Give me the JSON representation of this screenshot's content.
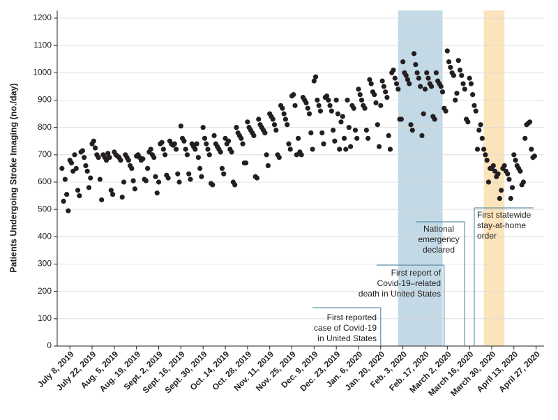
{
  "chart_data": {
    "type": "scatter",
    "ylabel": "Patients Undergoing Stroke Imaging (no./day)",
    "color": "#231f20",
    "grid": true,
    "ylim": [
      0,
      1228
    ],
    "yticks": [
      0,
      100,
      200,
      300,
      400,
      500,
      600,
      700,
      800,
      900,
      1000,
      1100,
      1200
    ],
    "xlim": [
      "2019-06-30",
      "2020-05-02"
    ],
    "xticks": [
      {
        "value": "2019-07-08",
        "label": "July 8, 2019"
      },
      {
        "value": "2019-07-22",
        "label": "July 22, 2019"
      },
      {
        "value": "2019-08-05",
        "label": "Aug. 5, 2019"
      },
      {
        "value": "2019-08-19",
        "label": "Aug. 19, 2019"
      },
      {
        "value": "2019-09-02",
        "label": "Sept. 2, 2019"
      },
      {
        "value": "2019-09-16",
        "label": "Sept. 16, 2019"
      },
      {
        "value": "2019-09-30",
        "label": "Sept. 30, 2019"
      },
      {
        "value": "2019-10-14",
        "label": "Oct. 14, 2019"
      },
      {
        "value": "2019-10-28",
        "label": "Oct. 28, 2019"
      },
      {
        "value": "2019-11-11",
        "label": "Nov. 11, 2019"
      },
      {
        "value": "2019-11-25",
        "label": "Nov. 25, 2019"
      },
      {
        "value": "2019-12-09",
        "label": "Dec. 9, 2019"
      },
      {
        "value": "2019-12-23",
        "label": "Dec. 23, 2019"
      },
      {
        "value": "2020-01-06",
        "label": "Jan. 6, 2020"
      },
      {
        "value": "2020-01-20",
        "label": "Jan. 20, 2020"
      },
      {
        "value": "2020-02-03",
        "label": "Feb. 3, 2020"
      },
      {
        "value": "2020-02-17",
        "label": "Feb. 17, 2020"
      },
      {
        "value": "2020-03-02",
        "label": "March 2, 2020"
      },
      {
        "value": "2020-03-16",
        "label": "March 16, 2020"
      },
      {
        "value": "2020-03-30",
        "label": "March 30, 2020"
      },
      {
        "value": "2020-04-13",
        "label": "April 13, 2020"
      },
      {
        "value": "2020-04-27",
        "label": "April 27, 2020"
      }
    ],
    "shaded_regions": [
      {
        "start": "2020-01-31",
        "end": "2020-02-28",
        "color": "#c3d9e5"
      },
      {
        "start": "2020-03-25",
        "end": "2020-04-07",
        "color": "#fbe4bb"
      }
    ],
    "annotations": [
      {
        "text": [
          "First reported",
          "case of Covid-19",
          "in United States"
        ],
        "date": "2020-01-20"
      },
      {
        "text": [
          "First report of",
          "Covid-19–related",
          "death in United States"
        ],
        "date": "2020-02-29"
      },
      {
        "text": [
          "National",
          "emergency",
          "declared"
        ],
        "date": "2020-03-13"
      },
      {
        "text": [
          "First statewide",
          "stay-at-home",
          "order"
        ],
        "date": "2020-03-19"
      }
    ],
    "x": [
      "2019-07-03",
      "2019-07-04",
      "2019-07-05",
      "2019-07-06",
      "2019-07-07",
      "2019-07-08",
      "2019-07-09",
      "2019-07-10",
      "2019-07-11",
      "2019-07-12",
      "2019-07-13",
      "2019-07-14",
      "2019-07-15",
      "2019-07-16",
      "2019-07-17",
      "2019-07-18",
      "2019-07-19",
      "2019-07-20",
      "2019-07-21",
      "2019-07-22",
      "2019-07-23",
      "2019-07-24",
      "2019-07-25",
      "2019-07-26",
      "2019-07-27",
      "2019-07-28",
      "2019-07-29",
      "2019-07-30",
      "2019-07-31",
      "2019-08-01",
      "2019-08-02",
      "2019-08-03",
      "2019-08-04",
      "2019-08-05",
      "2019-08-06",
      "2019-08-07",
      "2019-08-08",
      "2019-08-09",
      "2019-08-10",
      "2019-08-11",
      "2019-08-12",
      "2019-08-13",
      "2019-08-14",
      "2019-08-15",
      "2019-08-16",
      "2019-08-17",
      "2019-08-18",
      "2019-08-19",
      "2019-08-20",
      "2019-08-21",
      "2019-08-22",
      "2019-08-23",
      "2019-08-24",
      "2019-08-25",
      "2019-08-26",
      "2019-08-27",
      "2019-08-28",
      "2019-08-29",
      "2019-08-30",
      "2019-08-31",
      "2019-09-01",
      "2019-09-02",
      "2019-09-03",
      "2019-09-04",
      "2019-09-05",
      "2019-09-06",
      "2019-09-07",
      "2019-09-08",
      "2019-09-09",
      "2019-09-10",
      "2019-09-11",
      "2019-09-12",
      "2019-09-13",
      "2019-09-14",
      "2019-09-15",
      "2019-09-16",
      "2019-09-17",
      "2019-09-18",
      "2019-09-19",
      "2019-09-20",
      "2019-09-21",
      "2019-09-22",
      "2019-09-23",
      "2019-09-24",
      "2019-09-25",
      "2019-09-26",
      "2019-09-27",
      "2019-09-28",
      "2019-09-29",
      "2019-09-30",
      "2019-10-01",
      "2019-10-02",
      "2019-10-03",
      "2019-10-04",
      "2019-10-05",
      "2019-10-06",
      "2019-10-07",
      "2019-10-08",
      "2019-10-09",
      "2019-10-10",
      "2019-10-11",
      "2019-10-12",
      "2019-10-13",
      "2019-10-14",
      "2019-10-15",
      "2019-10-16",
      "2019-10-17",
      "2019-10-18",
      "2019-10-19",
      "2019-10-20",
      "2019-10-21",
      "2019-10-22",
      "2019-10-23",
      "2019-10-24",
      "2019-10-25",
      "2019-10-26",
      "2019-10-27",
      "2019-10-28",
      "2019-10-29",
      "2019-10-30",
      "2019-10-31",
      "2019-11-01",
      "2019-11-02",
      "2019-11-03",
      "2019-11-04",
      "2019-11-05",
      "2019-11-06",
      "2019-11-07",
      "2019-11-08",
      "2019-11-09",
      "2019-11-10",
      "2019-11-11",
      "2019-11-12",
      "2019-11-13",
      "2019-11-14",
      "2019-11-15",
      "2019-11-16",
      "2019-11-17",
      "2019-11-18",
      "2019-11-19",
      "2019-11-20",
      "2019-11-21",
      "2019-11-22",
      "2019-11-23",
      "2019-11-24",
      "2019-11-25",
      "2019-11-26",
      "2019-11-27",
      "2019-11-28",
      "2019-11-29",
      "2019-11-30",
      "2019-12-01",
      "2019-12-02",
      "2019-12-03",
      "2019-12-04",
      "2019-12-05",
      "2019-12-06",
      "2019-12-07",
      "2019-12-08",
      "2019-12-09",
      "2019-12-10",
      "2019-12-11",
      "2019-12-12",
      "2019-12-13",
      "2019-12-14",
      "2019-12-15",
      "2019-12-16",
      "2019-12-17",
      "2019-12-18",
      "2019-12-19",
      "2019-12-20",
      "2019-12-21",
      "2019-12-22",
      "2019-12-23",
      "2019-12-24",
      "2019-12-25",
      "2019-12-26",
      "2019-12-27",
      "2019-12-28",
      "2019-12-29",
      "2019-12-30",
      "2019-12-31",
      "2020-01-01",
      "2020-01-02",
      "2020-01-03",
      "2020-01-04",
      "2020-01-05",
      "2020-01-06",
      "2020-01-07",
      "2020-01-08",
      "2020-01-09",
      "2020-01-10",
      "2020-01-11",
      "2020-01-12",
      "2020-01-13",
      "2020-01-14",
      "2020-01-15",
      "2020-01-16",
      "2020-01-17",
      "2020-01-18",
      "2020-01-19",
      "2020-01-20",
      "2020-01-21",
      "2020-01-22",
      "2020-01-23",
      "2020-01-24",
      "2020-01-25",
      "2020-01-26",
      "2020-01-27",
      "2020-01-28",
      "2020-01-29",
      "2020-01-30",
      "2020-01-31",
      "2020-02-01",
      "2020-02-02",
      "2020-02-03",
      "2020-02-04",
      "2020-02-05",
      "2020-02-06",
      "2020-02-07",
      "2020-02-08",
      "2020-02-09",
      "2020-02-10",
      "2020-02-11",
      "2020-02-12",
      "2020-02-13",
      "2020-02-14",
      "2020-02-15",
      "2020-02-16",
      "2020-02-17",
      "2020-02-18",
      "2020-02-19",
      "2020-02-20",
      "2020-02-21",
      "2020-02-22",
      "2020-02-23",
      "2020-02-24",
      "2020-02-25",
      "2020-02-26",
      "2020-02-27",
      "2020-02-28",
      "2020-02-29",
      "2020-03-01",
      "2020-03-02",
      "2020-03-03",
      "2020-03-04",
      "2020-03-05",
      "2020-03-06",
      "2020-03-07",
      "2020-03-08",
      "2020-03-09",
      "2020-03-10",
      "2020-03-11",
      "2020-03-12",
      "2020-03-13",
      "2020-03-14",
      "2020-03-15",
      "2020-03-16",
      "2020-03-17",
      "2020-03-18",
      "2020-03-19",
      "2020-03-20",
      "2020-03-21",
      "2020-03-22",
      "2020-03-23",
      "2020-03-24",
      "2020-03-25",
      "2020-03-26",
      "2020-03-27",
      "2020-03-28",
      "2020-03-29",
      "2020-03-30",
      "2020-03-31",
      "2020-04-01",
      "2020-04-02",
      "2020-04-03",
      "2020-04-04",
      "2020-04-05",
      "2020-04-06",
      "2020-04-07",
      "2020-04-08",
      "2020-04-09",
      "2020-04-10",
      "2020-04-11",
      "2020-04-12",
      "2020-04-13",
      "2020-04-14",
      "2020-04-15",
      "2020-04-16",
      "2020-04-17",
      "2020-04-18",
      "2020-04-19",
      "2020-04-20",
      "2020-04-21",
      "2020-04-22",
      "2020-04-23",
      "2020-04-24",
      "2020-04-25",
      "2020-04-26"
    ],
    "values": [
      650,
      530,
      610,
      555,
      495,
      680,
      670,
      640,
      700,
      650,
      570,
      550,
      710,
      715,
      690,
      660,
      640,
      580,
      615,
      740,
      750,
      725,
      700,
      690,
      610,
      535,
      700,
      690,
      680,
      705,
      690,
      570,
      555,
      710,
      700,
      695,
      690,
      680,
      545,
      600,
      700,
      690,
      680,
      660,
      650,
      605,
      575,
      695,
      700,
      690,
      680,
      685,
      610,
      605,
      650,
      710,
      720,
      700,
      690,
      620,
      560,
      600,
      740,
      745,
      720,
      700,
      625,
      615,
      750,
      740,
      735,
      740,
      720,
      630,
      600,
      805,
      760,
      750,
      720,
      700,
      630,
      610,
      740,
      730,
      720,
      740,
      690,
      650,
      620,
      800,
      760,
      740,
      720,
      700,
      595,
      590,
      770,
      740,
      730,
      720,
      710,
      650,
      630,
      760,
      740,
      750,
      720,
      710,
      600,
      590,
      800,
      780,
      770,
      760,
      740,
      670,
      670,
      820,
      800,
      790,
      780,
      770,
      620,
      615,
      830,
      810,
      800,
      790,
      780,
      700,
      660,
      850,
      840,
      830,
      810,
      790,
      700,
      690,
      880,
      870,
      850,
      830,
      810,
      740,
      720,
      915,
      920,
      880,
      700,
      760,
      710,
      700,
      910,
      900,
      890,
      870,
      850,
      780,
      720,
      970,
      985,
      900,
      880,
      860,
      780,
      740,
      910,
      915,
      900,
      880,
      860,
      790,
      750,
      900,
      850,
      720,
      820,
      840,
      760,
      720,
      900,
      800,
      730,
      880,
      870,
      790,
      760,
      940,
      920,
      900,
      880,
      870,
      790,
      760,
      975,
      960,
      930,
      920,
      890,
      810,
      730,
      880,
      970,
      950,
      930,
      910,
      770,
      720,
      1000,
      1010,
      980,
      960,
      940,
      830,
      830,
      1040,
      1000,
      990,
      975,
      960,
      810,
      790,
      1070,
      1030,
      1000,
      980,
      950,
      770,
      850,
      940,
      1000,
      980,
      960,
      950,
      840,
      830,
      1000,
      970,
      960,
      950,
      930,
      870,
      860,
      1080,
      1040,
      1020,
      1000,
      990,
      900,
      925,
      1045,
      1010,
      990,
      960,
      940,
      830,
      820,
      980,
      960,
      920,
      880,
      860,
      720,
      790,
      810,
      760,
      720,
      700,
      680,
      600,
      650,
      650,
      660,
      640,
      620,
      630,
      540,
      570,
      650,
      660,
      640,
      630,
      610,
      540,
      580,
      700,
      680,
      660,
      650,
      640,
      590,
      600,
      760,
      810,
      815,
      820,
      720,
      690,
      695
    ]
  }
}
